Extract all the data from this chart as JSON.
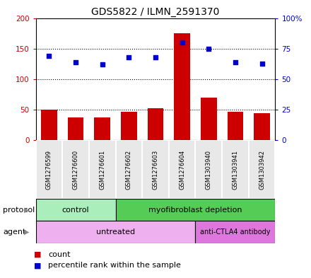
{
  "title": "GDS5822 / ILMN_2591370",
  "samples": [
    "GSM1276599",
    "GSM1276600",
    "GSM1276601",
    "GSM1276602",
    "GSM1276603",
    "GSM1276604",
    "GSM1303940",
    "GSM1303941",
    "GSM1303942"
  ],
  "counts": [
    50,
    37,
    37,
    47,
    53,
    175,
    70,
    47,
    45
  ],
  "percentiles": [
    69,
    64,
    62,
    68,
    68,
    80,
    75,
    64,
    63
  ],
  "ylim_left": [
    0,
    200
  ],
  "ylim_right": [
    0,
    100
  ],
  "yticks_left": [
    0,
    50,
    100,
    150,
    200
  ],
  "yticks_right": [
    0,
    25,
    50,
    75,
    100
  ],
  "ytick_labels_left": [
    "0",
    "50",
    "100",
    "150",
    "200"
  ],
  "ytick_labels_right": [
    "0",
    "25",
    "50",
    "75",
    "100%"
  ],
  "bar_color": "#cc0000",
  "dot_color": "#0000cc",
  "protocol_groups": [
    {
      "label": "control",
      "start": 0,
      "end": 2,
      "color": "#aaeebb"
    },
    {
      "label": "myofibroblast depletion",
      "start": 3,
      "end": 8,
      "color": "#55cc66"
    }
  ],
  "agent_groups": [
    {
      "label": "untreated",
      "start": 0,
      "end": 5,
      "color": "#eeb0ee"
    },
    {
      "label": "anti-CTLA4 antibody",
      "start": 6,
      "end": 8,
      "color": "#cc66cc"
    }
  ],
  "legend_count_label": "count",
  "legend_percentile_label": "percentile rank within the sample",
  "protocol_label": "protocol",
  "agent_label": "agent",
  "left_axis_color": "#cc0000",
  "right_axis_color": "#0000cc",
  "bg_color": "#e8e8e8"
}
